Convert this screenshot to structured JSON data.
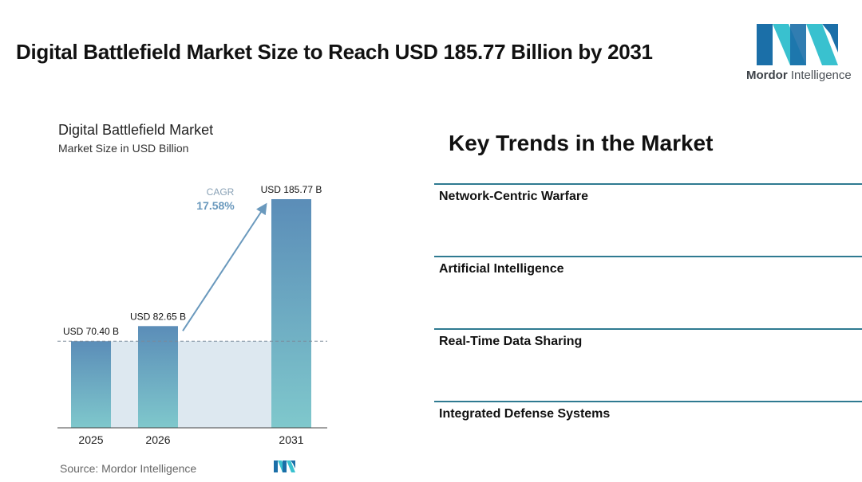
{
  "page": {
    "title": "Digital Battlefield Market Size to Reach USD 185.77 Billion by 2031"
  },
  "logo": {
    "brand_first": "Mordor",
    "brand_second": "Intelligence",
    "icon": "mordor-intelligence-logo-icon",
    "colors": {
      "dark": "#1b6fa8",
      "light": "#39c1cf"
    }
  },
  "chart_data": {
    "type": "bar",
    "title": "Digital Battlefield Market",
    "subtitle": "Market Size in USD Billion",
    "categories": [
      "2025",
      "2026",
      "2031"
    ],
    "values": [
      70.4,
      82.65,
      185.77
    ],
    "value_labels": [
      "USD 70.40 B",
      "USD 82.65 B",
      "USD 185.77 B"
    ],
    "ylim": [
      0,
      185.77
    ],
    "grid": false,
    "reference_line": "dashed horizontal line at the 2025 value",
    "cagr": {
      "label": "CAGR",
      "value": "17.58%"
    },
    "colors": {
      "bar_top": "#5b8db8",
      "bar_bottom": "#7fc8cc",
      "shade": "#dde8f0",
      "arrow": "#6a99bd"
    }
  },
  "source": "Source: Mordor Intelligence",
  "trends": {
    "heading": "Key Trends in the Market",
    "items": [
      {
        "label": "Network-Centric Warfare"
      },
      {
        "label": "Artificial Intelligence"
      },
      {
        "label": "Real-Time Data Sharing"
      },
      {
        "label": "Integrated Defense Systems"
      }
    ],
    "divider_color": "#2f7a91"
  }
}
